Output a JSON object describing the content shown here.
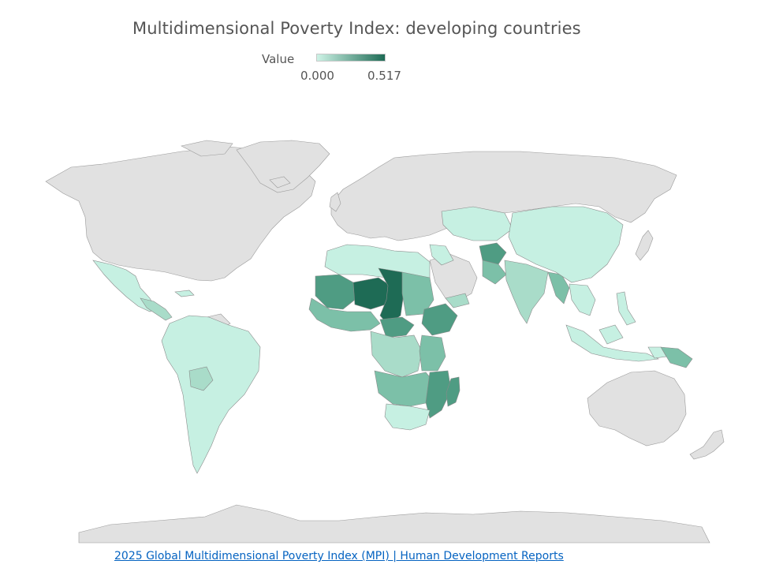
{
  "title": "Multidimensional Poverty Index: developing countries",
  "legend": {
    "label": "Value",
    "min": "0.000",
    "max": "0.517",
    "color_min": "#cdf3e6",
    "color_max": "#1e6b55"
  },
  "colors": {
    "no_data": "#e1e1e1",
    "low": "#c6f0e2",
    "mid_low": "#a9dcc9",
    "mid": "#7cc0a8",
    "mid_high": "#4f9c83",
    "high": "#2d7d65",
    "max": "#1e6b55"
  },
  "source_link": "2025 Global Multidimensional Poverty Index (MPI) | Human Development Reports"
}
